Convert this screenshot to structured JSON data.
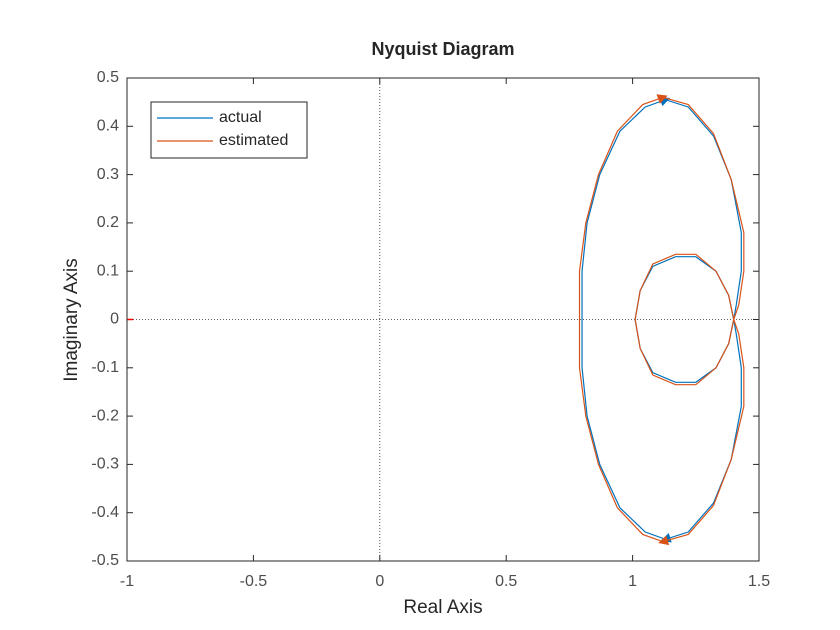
{
  "chart_data": {
    "type": "line",
    "title": "Nyquist Diagram",
    "x_label": "Real Axis",
    "y_label": "Imaginary Axis",
    "xlim": [
      -1,
      1.5
    ],
    "xticks": [
      -1,
      -0.5,
      0,
      0.5,
      1,
      1.5
    ],
    "ylim": [
      -0.5,
      0.5
    ],
    "yticks": [
      -0.5,
      -0.4,
      -0.3,
      -0.2,
      -0.1,
      0,
      0.1,
      0.2,
      0.3,
      0.4,
      0.5
    ],
    "legend": "upper left",
    "grid": false,
    "series": [
      {
        "name": "actual",
        "color": "#0072bd",
        "x": [
          0.8,
          0.8,
          0.82,
          0.87,
          0.95,
          1.05,
          1.13,
          1.22,
          1.32,
          1.39,
          1.43,
          1.43,
          1.41,
          1.4,
          1.38,
          1.33,
          1.25,
          1.17,
          1.08,
          1.03,
          1.01,
          1.03,
          1.08,
          1.17,
          1.25,
          1.33,
          1.38,
          1.4,
          1.41,
          1.43,
          1.43,
          1.39,
          1.32,
          1.22,
          1.13,
          1.05,
          0.95,
          0.87,
          0.82,
          0.8,
          0.8
        ],
        "values": [
          0,
          0.1,
          0.2,
          0.3,
          0.39,
          0.44,
          0.455,
          0.44,
          0.38,
          0.29,
          0.18,
          0.1,
          0.03,
          0,
          -0.05,
          -0.1,
          -0.13,
          -0.13,
          -0.11,
          -0.06,
          0,
          0.06,
          0.11,
          0.13,
          0.13,
          0.1,
          0.05,
          0,
          -0.03,
          -0.1,
          -0.18,
          -0.29,
          -0.38,
          -0.44,
          -0.455,
          -0.44,
          -0.39,
          -0.3,
          -0.2,
          -0.1,
          0
        ]
      },
      {
        "name": "estimated",
        "color": "#d95319",
        "x": [
          0.79,
          0.79,
          0.815,
          0.865,
          0.94,
          1.04,
          1.12,
          1.22,
          1.32,
          1.39,
          1.44,
          1.44,
          1.42,
          1.4,
          1.38,
          1.33,
          1.25,
          1.17,
          1.08,
          1.03,
          1.01,
          1.03,
          1.08,
          1.17,
          1.25,
          1.33,
          1.38,
          1.4,
          1.42,
          1.44,
          1.44,
          1.39,
          1.32,
          1.22,
          1.12,
          1.04,
          0.94,
          0.865,
          0.815,
          0.79,
          0.79
        ],
        "values": [
          0,
          0.1,
          0.2,
          0.3,
          0.39,
          0.445,
          0.46,
          0.445,
          0.385,
          0.29,
          0.18,
          0.1,
          0.03,
          0,
          -0.05,
          -0.1,
          -0.135,
          -0.135,
          -0.115,
          -0.06,
          0,
          0.06,
          0.115,
          0.135,
          0.135,
          0.1,
          0.05,
          0,
          -0.03,
          -0.1,
          -0.18,
          -0.29,
          -0.385,
          -0.445,
          -0.46,
          -0.445,
          -0.39,
          -0.3,
          -0.2,
          -0.1,
          0
        ]
      }
    ]
  }
}
